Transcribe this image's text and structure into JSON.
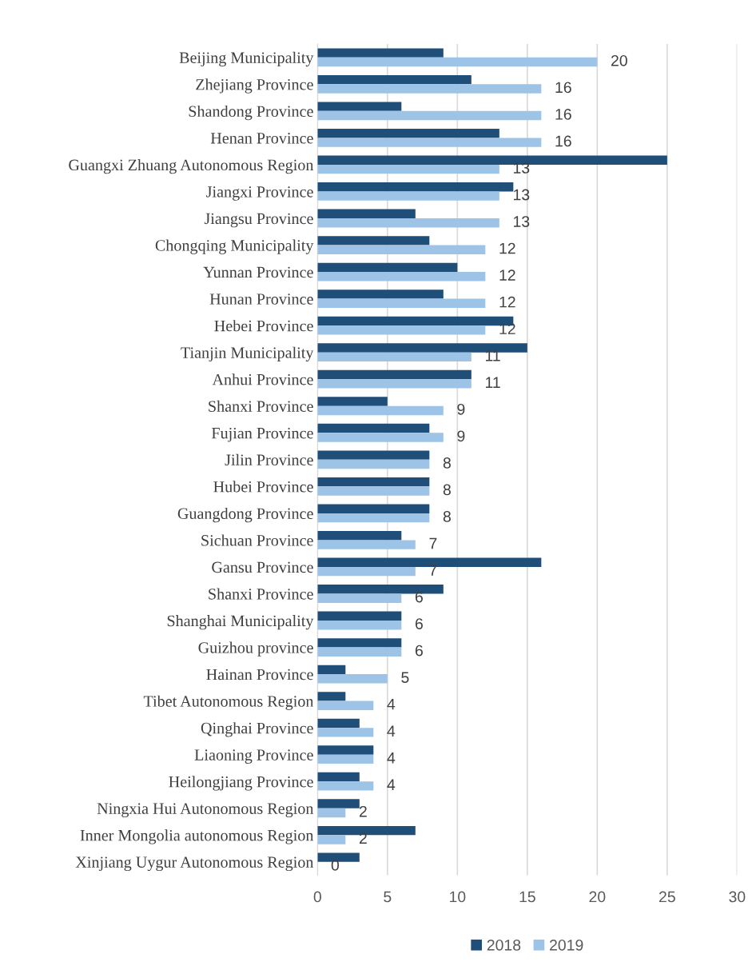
{
  "chart_data": {
    "type": "bar",
    "orientation": "horizontal",
    "categories": [
      "Beijing Municipality",
      "Zhejiang Province",
      "Shandong Province",
      "Henan Province",
      "Guangxi Zhuang Autonomous Region",
      "Jiangxi Province",
      "Jiangsu Province",
      "Chongqing Municipality",
      "Yunnan Province",
      "Hunan Province",
      "Hebei Province",
      "Tianjin Municipality",
      "Anhui Province",
      "Shanxi Province",
      "Fujian Province",
      "Jilin Province",
      "Hubei Province",
      "Guangdong Province",
      "Sichuan Province",
      "Gansu Province",
      "Shanxi Province",
      "Shanghai Municipality",
      "Guizhou province",
      "Hainan Province",
      "Tibet Autonomous Region",
      "Qinghai Province",
      "Liaoning Province",
      "Heilongjiang Province",
      "Ningxia Hui Autonomous Region",
      "Inner Mongolia autonomous Region",
      "Xinjiang Uygur Autonomous Region"
    ],
    "series": [
      {
        "name": "2018",
        "color": "#1f4e79",
        "values": [
          9,
          11,
          6,
          13,
          25,
          14,
          7,
          8,
          10,
          9,
          14,
          15,
          11,
          5,
          8,
          8,
          8,
          8,
          6,
          16,
          9,
          6,
          6,
          2,
          2,
          3,
          4,
          3,
          3,
          7,
          3
        ]
      },
      {
        "name": "2019",
        "color": "#9dc3e6",
        "values": [
          20,
          16,
          16,
          16,
          13,
          13,
          13,
          12,
          12,
          12,
          12,
          11,
          11,
          9,
          9,
          8,
          8,
          8,
          7,
          7,
          6,
          6,
          6,
          5,
          4,
          4,
          4,
          4,
          2,
          2,
          0
        ],
        "value_labels": [
          "20",
          "16",
          "16",
          "16",
          "13",
          "13",
          "13",
          "12",
          "12",
          "12",
          "12",
          "11",
          "11",
          "9",
          "9",
          "8",
          "8",
          "8",
          "7",
          "7",
          "6",
          "6",
          "6",
          "5",
          "4",
          "4",
          "4",
          "4",
          "2",
          "2",
          "0"
        ]
      }
    ],
    "xlim": [
      0,
      30
    ],
    "xticks": [
      0,
      5,
      10,
      15,
      20,
      25,
      30
    ],
    "grid": "x",
    "legend": "bottom"
  }
}
